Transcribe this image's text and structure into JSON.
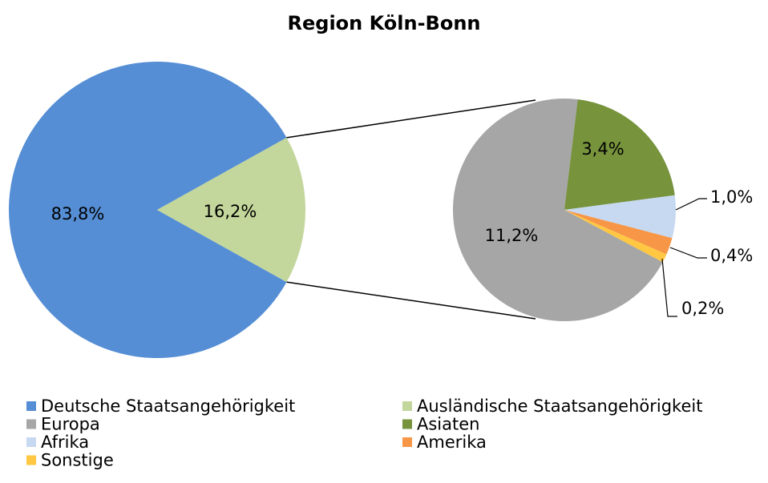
{
  "chart_data": {
    "type": "pie",
    "title": "Region Köln-Bonn",
    "categories": [
      "Deutsche Staatsangehörigkeit",
      "Ausländische Staatsangehörigkeit"
    ],
    "values": [
      83.8,
      16.2
    ],
    "value_labels": [
      "83,8%",
      "16,2%"
    ],
    "colors": [
      "#558ed5",
      "#c3d69b"
    ],
    "detail": {
      "categories": [
        "Europa",
        "Asiaten",
        "Afrika",
        "Amerika",
        "Sonstige"
      ],
      "values": [
        11.2,
        3.4,
        1.0,
        0.4,
        0.2
      ],
      "value_labels": [
        "11,2%",
        "3,4%",
        "1,0%",
        "0,4%",
        "0,2%"
      ],
      "colors": [
        "#a6a6a6",
        "#77933c",
        "#c6d9f1",
        "#f79646",
        "#ffc742"
      ]
    }
  }
}
